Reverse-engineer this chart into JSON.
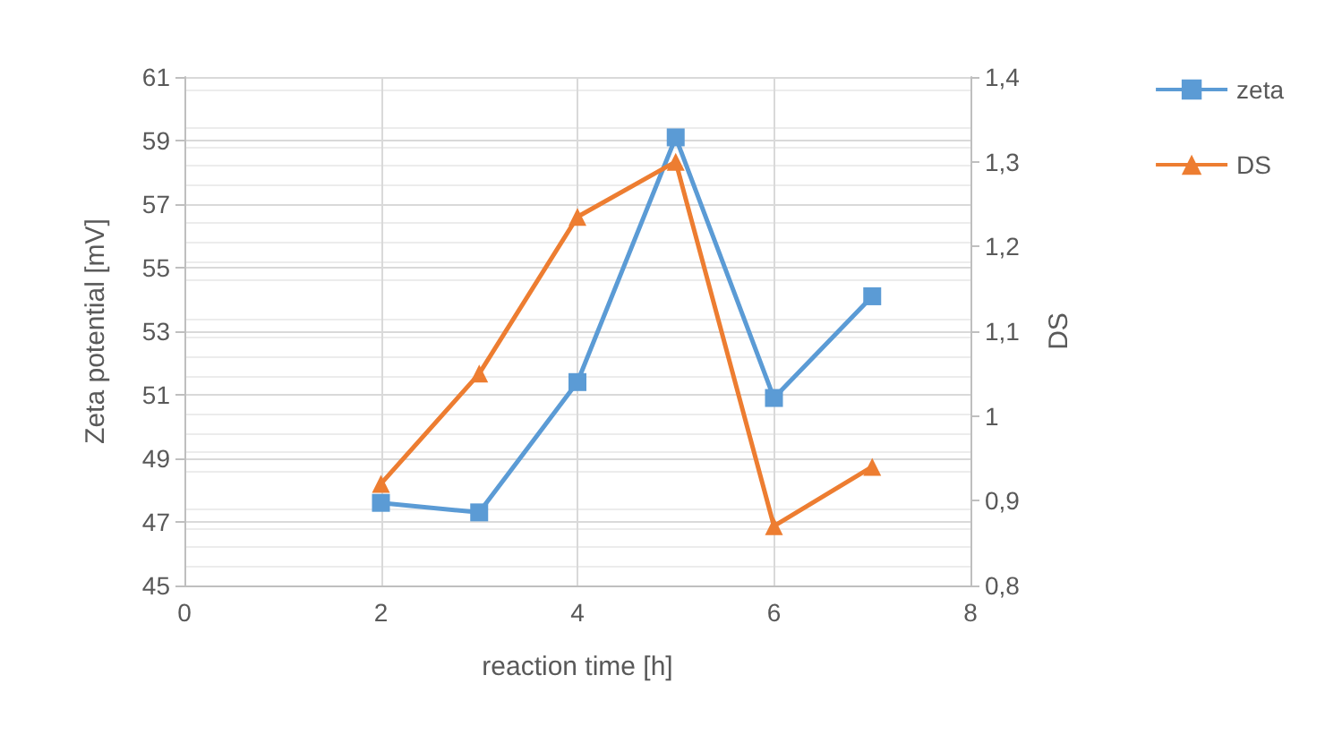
{
  "chart_data": {
    "type": "line",
    "xlabel": "reaction time [h]",
    "ylabel": "Zeta potential [mV]",
    "y2label": "DS",
    "x": [
      2,
      3,
      4,
      5,
      6,
      7
    ],
    "series": [
      {
        "name": "zeta",
        "color": "#5b9bd5",
        "marker": "square",
        "values": [
          47.6,
          47.3,
          51.4,
          59.1,
          50.9,
          54.1
        ]
      },
      {
        "name": "DS",
        "color": "#ed7d31",
        "marker": "triangle",
        "axis": "y2",
        "values": [
          0.92,
          1.05,
          1.235,
          1.3,
          0.87,
          0.94
        ]
      }
    ],
    "xlim": [
      0,
      8
    ],
    "xticks": [
      0,
      2,
      4,
      6,
      8
    ],
    "ylim": [
      45,
      61
    ],
    "yticks": [
      45,
      47,
      49,
      51,
      53,
      55,
      57,
      59,
      61
    ],
    "y2lim": [
      0.8,
      1.4
    ],
    "y2ticks": [
      {
        "value": 0.8,
        "label": "0,8"
      },
      {
        "value": 0.9,
        "label": "0,9"
      },
      1,
      {
        "value": 1.1,
        "label": "1,1"
      },
      {
        "value": 1.2,
        "label": "1,2"
      },
      {
        "value": 1.3,
        "label": "1,3"
      },
      {
        "value": 1.4,
        "label": "1,4"
      }
    ],
    "grid": true,
    "legend": "right",
    "line_style": "solid"
  }
}
